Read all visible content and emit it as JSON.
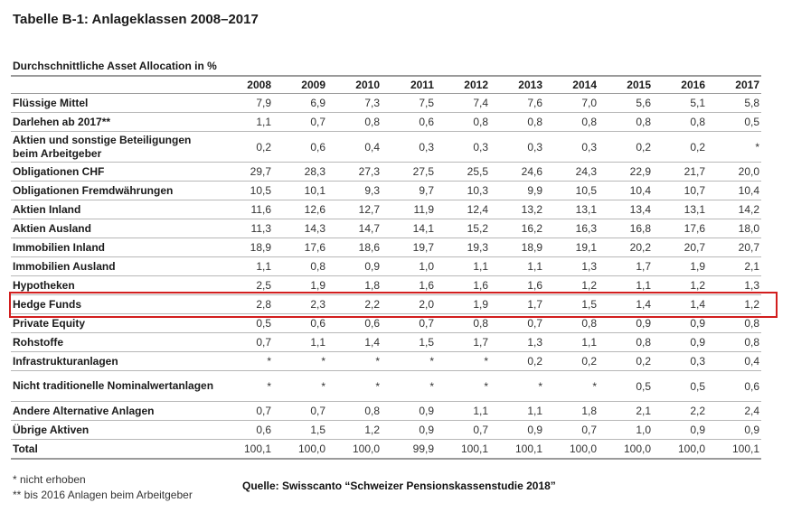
{
  "title": "Tabelle B-1: Anlageklassen 2008–2017",
  "subtitle": "Durchschnittliche Asset Allocation in %",
  "years": [
    "2008",
    "2009",
    "2010",
    "2011",
    "2012",
    "2013",
    "2014",
    "2015",
    "2016",
    "2017"
  ],
  "rows": [
    {
      "label": "Flüssige Mittel",
      "values": [
        "7,9",
        "6,9",
        "7,3",
        "7,5",
        "7,4",
        "7,6",
        "7,0",
        "5,6",
        "5,1",
        "5,8"
      ]
    },
    {
      "label": "Darlehen ab 2017**",
      "values": [
        "1,1",
        "0,7",
        "0,8",
        "0,6",
        "0,8",
        "0,8",
        "0,8",
        "0,8",
        "0,8",
        "0,5"
      ]
    },
    {
      "label": "Aktien und sonstige Beteiligungen beim Arbeitgeber",
      "values": [
        "0,2",
        "0,6",
        "0,4",
        "0,3",
        "0,3",
        "0,3",
        "0,3",
        "0,2",
        "0,2",
        "*"
      ]
    },
    {
      "label": "Obligationen CHF",
      "values": [
        "29,7",
        "28,3",
        "27,3",
        "27,5",
        "25,5",
        "24,6",
        "24,3",
        "22,9",
        "21,7",
        "20,0"
      ]
    },
    {
      "label": "Obligationen Fremdwährungen",
      "values": [
        "10,5",
        "10,1",
        "9,3",
        "9,7",
        "10,3",
        "9,9",
        "10,5",
        "10,4",
        "10,7",
        "10,4"
      ]
    },
    {
      "label": "Aktien Inland",
      "values": [
        "11,6",
        "12,6",
        "12,7",
        "11,9",
        "12,4",
        "13,2",
        "13,1",
        "13,4",
        "13,1",
        "14,2"
      ]
    },
    {
      "label": "Aktien Ausland",
      "values": [
        "11,3",
        "14,3",
        "14,7",
        "14,1",
        "15,2",
        "16,2",
        "16,3",
        "16,8",
        "17,6",
        "18,0"
      ]
    },
    {
      "label": "Immobilien Inland",
      "values": [
        "18,9",
        "17,6",
        "18,6",
        "19,7",
        "19,3",
        "18,9",
        "19,1",
        "20,2",
        "20,7",
        "20,7"
      ]
    },
    {
      "label": "Immobilien Ausland",
      "values": [
        "1,1",
        "0,8",
        "0,9",
        "1,0",
        "1,1",
        "1,1",
        "1,3",
        "1,7",
        "1,9",
        "2,1"
      ]
    },
    {
      "label": "Hypotheken",
      "values": [
        "2,5",
        "1,9",
        "1,8",
        "1,6",
        "1,6",
        "1,6",
        "1,2",
        "1,1",
        "1,2",
        "1,3"
      ]
    },
    {
      "label": "Hedge Funds",
      "values": [
        "2,8",
        "2,3",
        "2,2",
        "2,0",
        "1,9",
        "1,7",
        "1,5",
        "1,4",
        "1,4",
        "1,2"
      ],
      "highlighted": true
    },
    {
      "label": "Private Equity",
      "values": [
        "0,5",
        "0,6",
        "0,6",
        "0,7",
        "0,8",
        "0,7",
        "0,8",
        "0,9",
        "0,9",
        "0,8"
      ]
    },
    {
      "label": "Rohstoffe",
      "values": [
        "0,7",
        "1,1",
        "1,4",
        "1,5",
        "1,7",
        "1,3",
        "1,1",
        "0,8",
        "0,9",
        "0,8"
      ]
    },
    {
      "label": "Infrastrukturanlagen",
      "values": [
        "*",
        "*",
        "*",
        "*",
        "*",
        "0,2",
        "0,2",
        "0,2",
        "0,3",
        "0,4"
      ]
    },
    {
      "label": "Nicht traditionelle Nominalwertanlagen",
      "values": [
        "*",
        "*",
        "*",
        "*",
        "*",
        "*",
        "*",
        "0,5",
        "0,5",
        "0,6"
      ]
    },
    {
      "label": "Andere Alternative Anlagen",
      "values": [
        "0,7",
        "0,7",
        "0,8",
        "0,9",
        "1,1",
        "1,1",
        "1,8",
        "2,1",
        "2,2",
        "2,4"
      ]
    },
    {
      "label": "Übrige Aktiven",
      "values": [
        "0,6",
        "1,5",
        "1,2",
        "0,9",
        "0,7",
        "0,9",
        "0,7",
        "1,0",
        "0,9",
        "0,9"
      ]
    },
    {
      "label": "Total",
      "values": [
        "100,1",
        "100,0",
        "100,0",
        "99,9",
        "100,1",
        "100,1",
        "100,0",
        "100,0",
        "100,0",
        "100,1"
      ]
    }
  ],
  "footnotes": [
    "* nicht erhoben",
    "** bis 2016 Anlagen beim Arbeitgeber"
  ],
  "source": "Quelle: Swisscanto “Schweizer Pensionskassenstudie 2018”",
  "highlight_color": "#d21e1e"
}
